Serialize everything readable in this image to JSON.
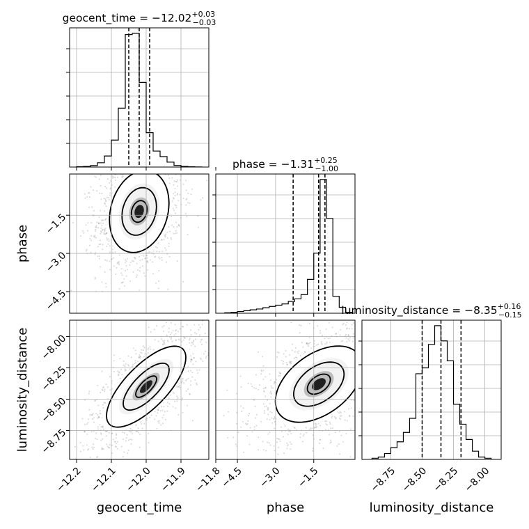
{
  "chart_data": {
    "type": "corner",
    "parameters": [
      "geocent_time",
      "phase",
      "luminosity_distance"
    ],
    "titles": {
      "geocent_time": {
        "label": "geocent_time = ",
        "value": "−12.02",
        "plus": "+0.03",
        "minus": "−0.03"
      },
      "phase": {
        "label": "phase = ",
        "value": "−1.31",
        "plus": "+0.25",
        "minus": "−1.00"
      },
      "luminosity_distance": {
        "label": "luminosity_distance = ",
        "value": "−8.35",
        "plus": "+0.16",
        "minus": "−0.15"
      }
    },
    "axis_labels": {
      "geocent_time": "geocent_time",
      "phase": "phase",
      "luminosity_distance": "luminosity_distance"
    },
    "ranges": {
      "geocent_time": [
        -12.22,
        -11.82
      ],
      "phase": [
        -5.35,
        0.12
      ],
      "luminosity_distance": [
        -8.98,
        -7.87
      ]
    },
    "ticks": {
      "geocent_time": {
        "values": [
          -12.2,
          -12.1,
          -12.0,
          -11.9,
          -11.8
        ],
        "labels": [
          "−12.2",
          "−12.1",
          "−12.0",
          "−11.9",
          "−11.8"
        ]
      },
      "phase": {
        "values": [
          -4.5,
          -3.0,
          -1.5
        ],
        "labels": [
          "−4.5",
          "−3.0",
          "−1.5"
        ]
      },
      "luminosity_distance": {
        "values": [
          -8.75,
          -8.5,
          -8.25,
          -8.0
        ],
        "labels": [
          "−8.75",
          "−8.50",
          "−8.25",
          "−8.00"
        ]
      }
    },
    "quantiles": {
      "geocent_time": [
        -12.05,
        -12.02,
        -11.99
      ],
      "phase": [
        -2.31,
        -1.31,
        -1.06
      ],
      "luminosity_distance": [
        -8.5,
        -8.35,
        -8.19
      ]
    },
    "histograms": {
      "geocent_time": {
        "edges": [
          -12.2,
          -12.18,
          -12.16,
          -12.14,
          -12.12,
          -12.1,
          -12.08,
          -12.06,
          -12.04,
          -12.02,
          -12.0,
          -11.98,
          -11.96,
          -11.94,
          -11.92,
          -11.9,
          -11.88,
          -11.86,
          -11.84
        ],
        "counts": [
          0.3,
          0.5,
          1.2,
          3.5,
          9,
          22,
          48,
          108,
          109,
          69,
          28,
          13,
          8.5,
          4,
          1.3,
          0.5,
          0.2,
          0.1
        ]
      },
      "phase": {
        "edges": [
          -5.0,
          -4.75,
          -4.5,
          -4.25,
          -4.0,
          -3.75,
          -3.5,
          -3.25,
          -3.0,
          -2.75,
          -2.5,
          -2.25,
          -2.0,
          -1.75,
          -1.5,
          -1.25,
          -1.0,
          -0.75,
          -0.5,
          -0.25,
          0.0
        ],
        "counts": [
          0.5,
          1,
          2,
          3,
          4,
          5,
          6.5,
          8,
          9.5,
          11,
          14,
          17,
          22,
          40,
          71,
          158,
          112,
          20,
          7,
          1
        ]
      },
      "luminosity_distance": {
        "edges": [
          -8.9,
          -8.85,
          -8.8,
          -8.75,
          -8.7,
          -8.65,
          -8.6,
          -8.55,
          -8.5,
          -8.45,
          -8.4,
          -8.35,
          -8.3,
          -8.25,
          -8.2,
          -8.15,
          -8.1,
          -8.05,
          -8.0,
          -7.95
        ],
        "counts": [
          1,
          2,
          5,
          10,
          15,
          23,
          35,
          73,
          78,
          98,
          114,
          101,
          84,
          47,
          30,
          17,
          7,
          2,
          1
        ]
      }
    },
    "pairs": [
      {
        "x": "geocent_time",
        "y": "phase",
        "cx": -12.02,
        "cy": -1.35,
        "sx": 0.045,
        "sy": 0.85,
        "rho": 0.2
      },
      {
        "x": "geocent_time",
        "y": "luminosity_distance",
        "cx": -12.0,
        "cy": -8.4,
        "sx": 0.06,
        "sy": 0.17,
        "rho": 0.72
      },
      {
        "x": "phase",
        "y": "luminosity_distance",
        "cx": -1.3,
        "cy": -8.38,
        "sx": 0.9,
        "sy": 0.16,
        "rho": 0.45
      }
    ],
    "grid": true
  }
}
